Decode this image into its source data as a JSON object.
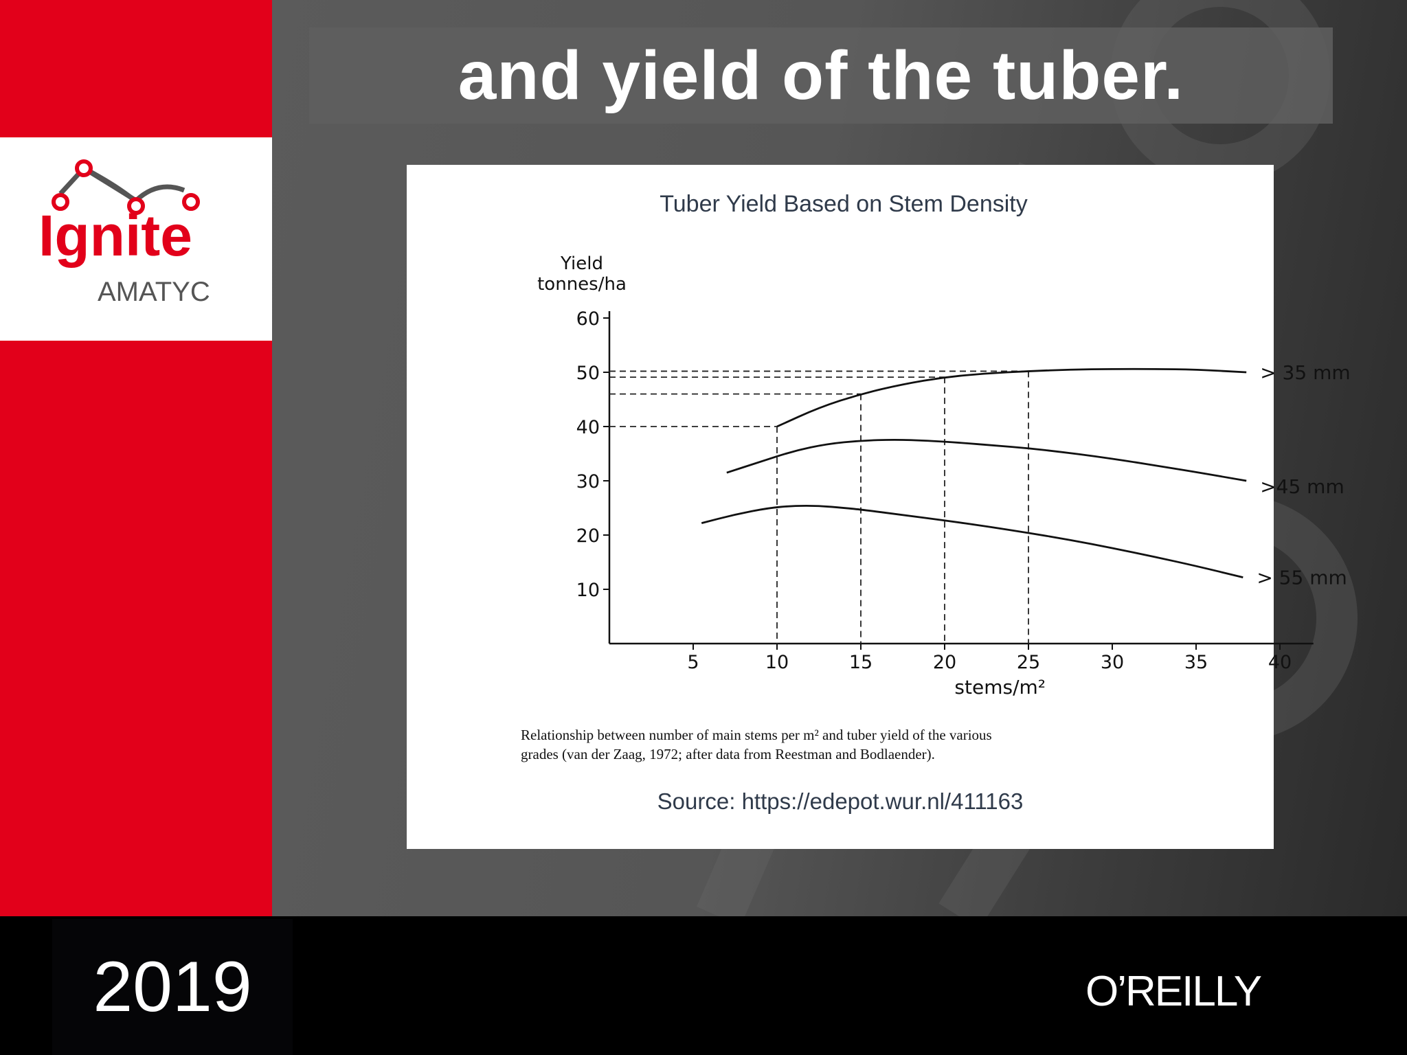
{
  "slide": {
    "title": "and yield of the tuber.",
    "year": "2019"
  },
  "branding": {
    "logo_text": "Ignite",
    "logo_subtext": "AMATYC",
    "publisher": "O’REILLY"
  },
  "colors": {
    "brand_red": "#e2001a",
    "title_text": "#ffffff",
    "chart_title": "#2f3a4a",
    "logo_gray": "#555555"
  },
  "chart_data": {
    "type": "line",
    "title": "Tuber Yield Based on Stem Density",
    "ylabel_line1": "Yield",
    "ylabel_line2": "tonnes/ha",
    "xlabel": "stems/m²",
    "xlim": [
      0,
      42
    ],
    "ylim": [
      0,
      60
    ],
    "x_ticks": [
      5,
      10,
      15,
      20,
      25,
      30,
      35,
      40
    ],
    "y_ticks": [
      10,
      20,
      30,
      40,
      50,
      60
    ],
    "grid": false,
    "series": [
      {
        "name": "> 35 mm",
        "x": [
          10,
          12.5,
          15,
          17.5,
          20,
          22.5,
          25,
          27.5,
          30,
          32.5,
          35,
          38
        ],
        "y": [
          40,
          43.5,
          46,
          47.8,
          49.1,
          49.8,
          50.2,
          50.5,
          50.6,
          50.6,
          50.5,
          50.0
        ]
      },
      {
        "name": ">45 mm",
        "x": [
          7,
          9,
          11,
          13,
          15,
          17,
          19,
          21,
          23,
          25,
          27,
          29,
          31,
          33,
          35,
          38
        ],
        "y": [
          31.5,
          33.5,
          35.5,
          36.8,
          37.4,
          37.6,
          37.4,
          37.0,
          36.5,
          36.0,
          35.3,
          34.5,
          33.6,
          32.6,
          31.6,
          30.0
        ]
      },
      {
        "name": "> 55 mm",
        "x": [
          5.5,
          7.5,
          9.5,
          11,
          12.5,
          14,
          15,
          17.5,
          20,
          22.5,
          25,
          27.5,
          30,
          32.5,
          35,
          37.8
        ],
        "y": [
          22.2,
          23.8,
          25.0,
          25.4,
          25.4,
          25.0,
          24.7,
          23.7,
          22.7,
          21.6,
          20.4,
          19.1,
          17.6,
          16.0,
          14.3,
          12.2
        ]
      }
    ],
    "reference_points": [
      {
        "x": 10,
        "y": 40
      },
      {
        "x": 15,
        "y": 46
      },
      {
        "x": 20,
        "y": 49.1
      },
      {
        "x": 25,
        "y": 50.2
      }
    ],
    "caption_line1": "Relationship between number of main stems per m² and tuber yield of the various",
    "caption_line2": "grades (van der Zaag, 1972; after data from Reestman and Bodlaender).",
    "source": "Source: https://edepot.wur.nl/411163"
  }
}
